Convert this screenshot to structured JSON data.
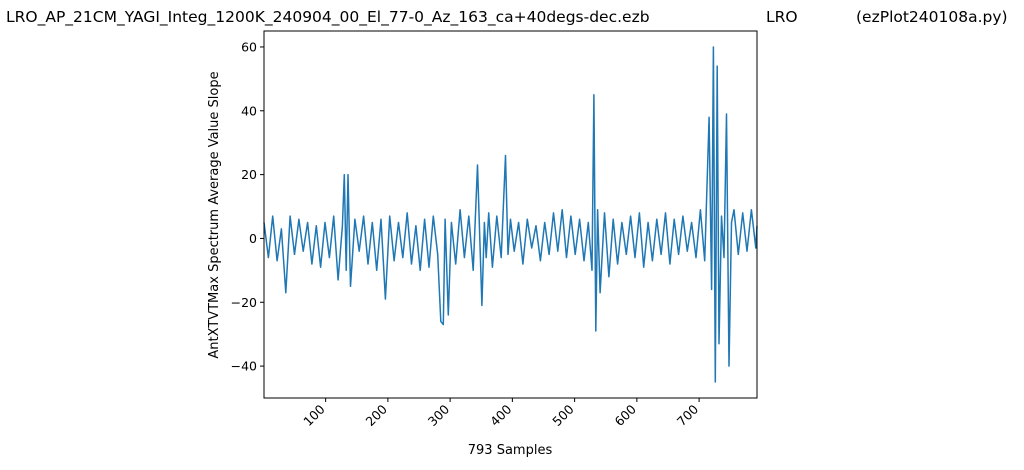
{
  "header": {
    "left": "LRO_AP_21CM_YAGI_Integ_1200K_240904_00_El_77-0_Az_163_ca+40degs-dec.ezb",
    "center": "LRO",
    "right": "(ezPlot240108a.py)"
  },
  "chart_data": {
    "type": "line",
    "xlabel": "793 Samples",
    "ylabel": "AntXTVTMax Spectrum Average Value Slope",
    "xlim": [
      1,
      793
    ],
    "ylim": [
      -50,
      65
    ],
    "x_ticks": [
      100,
      200,
      300,
      400,
      500,
      600,
      700
    ],
    "y_ticks": [
      -40,
      -20,
      0,
      20,
      40,
      60
    ],
    "line_color": "#1f77b4",
    "grid": false,
    "series": [
      {
        "x": [
          1,
          8,
          15,
          22,
          29,
          36,
          43,
          50,
          57,
          64,
          71,
          78,
          85,
          92,
          99,
          106,
          113,
          120,
          127,
          130,
          133,
          136,
          140,
          147,
          154,
          161,
          168,
          175,
          182,
          189,
          196,
          203,
          210,
          217,
          224,
          231,
          238,
          245,
          252,
          259,
          266,
          273,
          280,
          285,
          289,
          292,
          297,
          302,
          309,
          316,
          323,
          330,
          337,
          344,
          351,
          355,
          358,
          362,
          368,
          375,
          382,
          389,
          393,
          397,
          403,
          410,
          417,
          424,
          431,
          438,
          445,
          452,
          459,
          466,
          473,
          480,
          487,
          494,
          501,
          508,
          515,
          522,
          528,
          531,
          534,
          537,
          541,
          548,
          555,
          562,
          569,
          576,
          583,
          590,
          597,
          604,
          611,
          618,
          625,
          632,
          639,
          646,
          653,
          660,
          667,
          674,
          681,
          688,
          695,
          702,
          709,
          716,
          720,
          723,
          726,
          729,
          732,
          736,
          740,
          744,
          748,
          752,
          756,
          763,
          770,
          777,
          784,
          791,
          793
        ],
        "values": [
          5,
          -6,
          7,
          -7,
          3,
          -17,
          7,
          -5,
          6,
          -4,
          5,
          -8,
          4,
          -9,
          5,
          -6,
          7,
          -13,
          4,
          20,
          -10,
          20,
          -15,
          6,
          -4,
          7,
          -8,
          5,
          -10,
          6,
          -19,
          7,
          -7,
          5,
          -6,
          8,
          -8,
          4,
          -10,
          6,
          -9,
          7,
          -5,
          -26,
          -27,
          6,
          -24,
          5,
          -8,
          9,
          -6,
          7,
          -10,
          23,
          -21,
          5,
          -6,
          8,
          -9,
          7,
          -6,
          26,
          -5,
          6,
          -4,
          5,
          -8,
          6,
          -3,
          4,
          -7,
          5,
          -5,
          8,
          -4,
          9,
          -6,
          7,
          -5,
          6,
          -7,
          5,
          -10,
          45,
          -29,
          9,
          -17,
          8,
          -12,
          6,
          -8,
          5,
          -5,
          7,
          -6,
          8,
          -9,
          5,
          -7,
          6,
          -5,
          8,
          -8,
          6,
          -5,
          7,
          -4,
          5,
          -6,
          9,
          -7,
          38,
          -16,
          60,
          -45,
          54,
          -33,
          7,
          -6,
          39,
          -40,
          5,
          9,
          -5,
          8,
          -4,
          9,
          -3,
          4
        ]
      }
    ]
  }
}
